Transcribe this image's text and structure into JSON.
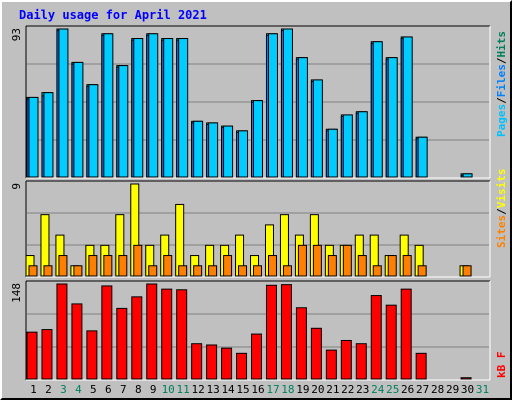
{
  "title": "Daily usage for April 2021",
  "colors": {
    "background": "#c0c0c0",
    "hits": "#00ccff",
    "files": "#0080ff",
    "pages": "#00c0ff",
    "visits": "#ffff00",
    "sites": "#ff8000",
    "kbytes": "#ff0000",
    "title": "#0000ff",
    "weekend_day": "#00805c",
    "weekday": "#000000"
  },
  "labels": {
    "top_legend": [
      "Pages",
      "/",
      "Files",
      "/",
      "Hits"
    ],
    "middle_legend": [
      "Sites",
      "/",
      "Visits"
    ],
    "bottom_legend": [
      "kB F"
    ],
    "top_max": "93",
    "middle_max": "9",
    "bottom_max": "148"
  },
  "chart_data": [
    {
      "type": "bar",
      "name": "top",
      "categories": [
        "1",
        "2",
        "3",
        "4",
        "5",
        "6",
        "7",
        "8",
        "9",
        "10",
        "11",
        "12",
        "13",
        "14",
        "15",
        "16",
        "17",
        "18",
        "19",
        "20",
        "21",
        "22",
        "23",
        "24",
        "25",
        "26",
        "27",
        "28",
        "29",
        "30",
        "31"
      ],
      "weekend_days": [
        3,
        4,
        10,
        11,
        17,
        18,
        24,
        25,
        31
      ],
      "ylim": [
        0,
        93
      ],
      "series": [
        {
          "name": "Hits",
          "values": [
            50,
            53,
            93,
            72,
            58,
            90,
            70,
            87,
            90,
            87,
            87,
            35,
            34,
            32,
            29,
            48,
            90,
            93,
            75,
            61,
            30,
            39,
            41,
            85,
            75,
            88,
            25,
            0,
            0,
            2,
            0
          ]
        },
        {
          "name": "Files",
          "values": [
            49,
            51,
            92,
            71,
            57,
            89,
            69,
            86,
            89,
            86,
            86,
            34,
            33,
            31,
            28,
            47,
            89,
            92,
            74,
            60,
            29,
            38,
            40,
            84,
            74,
            87,
            24,
            0,
            0,
            1,
            0
          ]
        }
      ]
    },
    {
      "type": "bar",
      "name": "middle",
      "ylim": [
        0,
        9
      ],
      "series": [
        {
          "name": "Visits",
          "values": [
            2,
            6,
            4,
            1,
            3,
            3,
            6,
            9,
            3,
            4,
            7,
            2,
            3,
            3,
            4,
            2,
            5,
            6,
            4,
            6,
            3,
            3,
            4,
            4,
            2,
            4,
            3,
            0,
            0,
            1,
            0
          ]
        },
        {
          "name": "Sites",
          "values": [
            1,
            1,
            2,
            1,
            2,
            2,
            2,
            3,
            1,
            2,
            1,
            1,
            1,
            2,
            1,
            1,
            2,
            1,
            3,
            3,
            2,
            3,
            2,
            1,
            2,
            2,
            1,
            0,
            0,
            1,
            0
          ]
        }
      ]
    },
    {
      "type": "bar",
      "name": "bottom",
      "ylim": [
        0,
        148
      ],
      "series": [
        {
          "name": "kB F",
          "values": [
            73,
            77,
            148,
            117,
            75,
            145,
            110,
            128,
            148,
            140,
            139,
            55,
            53,
            48,
            40,
            70,
            146,
            147,
            111,
            79,
            45,
            60,
            55,
            130,
            115,
            140,
            40,
            0,
            0,
            2,
            0
          ]
        }
      ]
    }
  ]
}
